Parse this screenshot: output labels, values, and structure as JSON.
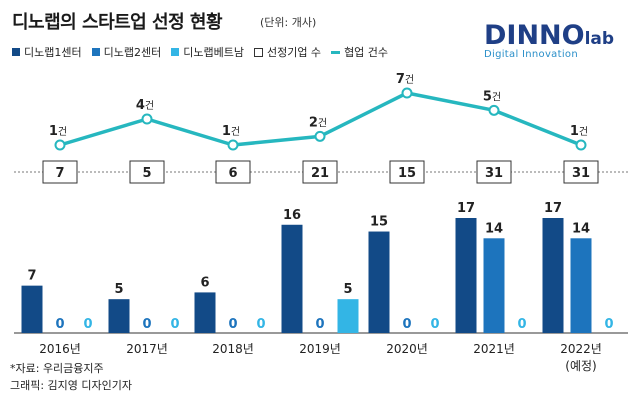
{
  "header": {
    "title": "디노랩의 스타트업 선정 현황",
    "unit": "(단위: 개사)"
  },
  "logo": {
    "main": "DINNO",
    "lab": "lab",
    "sub": "Digital Innovation"
  },
  "legend": [
    {
      "label": "디노랩1센터",
      "color": "#124a87",
      "kind": "square"
    },
    {
      "label": "디노랩2센터",
      "color": "#1d74bd",
      "kind": "square"
    },
    {
      "label": "디노랩베트남",
      "color": "#33b5e5",
      "kind": "square"
    },
    {
      "label": "선정기업 수",
      "color": "#333333",
      "kind": "box"
    },
    {
      "label": "협업 건수",
      "color": "#26b7bf",
      "kind": "line"
    }
  ],
  "footer": {
    "source": "*자료: 우리금융지주",
    "credit": "그래픽: 김지영 디자인기자"
  },
  "chart_data": {
    "type": "bar",
    "categories": [
      "2016년",
      "2017년",
      "2018년",
      "2019년",
      "2020년",
      "2021년",
      "2022년"
    ],
    "category_notes": [
      "",
      "",
      "",
      "",
      "",
      "",
      "(예정)"
    ],
    "series": [
      {
        "name": "디노랩1센터",
        "color": "#124a87",
        "values": [
          7,
          5,
          6,
          16,
          15,
          17,
          17
        ]
      },
      {
        "name": "디노랩2센터",
        "color": "#1d74bd",
        "values": [
          0,
          0,
          0,
          0,
          0,
          14,
          14
        ]
      },
      {
        "name": "디노랩베트남",
        "color": "#33b5e5",
        "values": [
          0,
          0,
          0,
          5,
          0,
          0,
          0
        ]
      }
    ],
    "selected_total": {
      "name": "선정기업 수",
      "values": [
        7,
        5,
        6,
        21,
        15,
        31,
        31
      ]
    },
    "collaboration": {
      "name": "협업 건수",
      "unit_suffix": "건",
      "color": "#26b7bf",
      "values": [
        1,
        4,
        1,
        2,
        7,
        5,
        1
      ]
    },
    "zero_label_colors": [
      "#1d74bd",
      "#33b5e5"
    ],
    "ylim": [
      0,
      17
    ],
    "grid": false,
    "legend_position": "top-left"
  }
}
